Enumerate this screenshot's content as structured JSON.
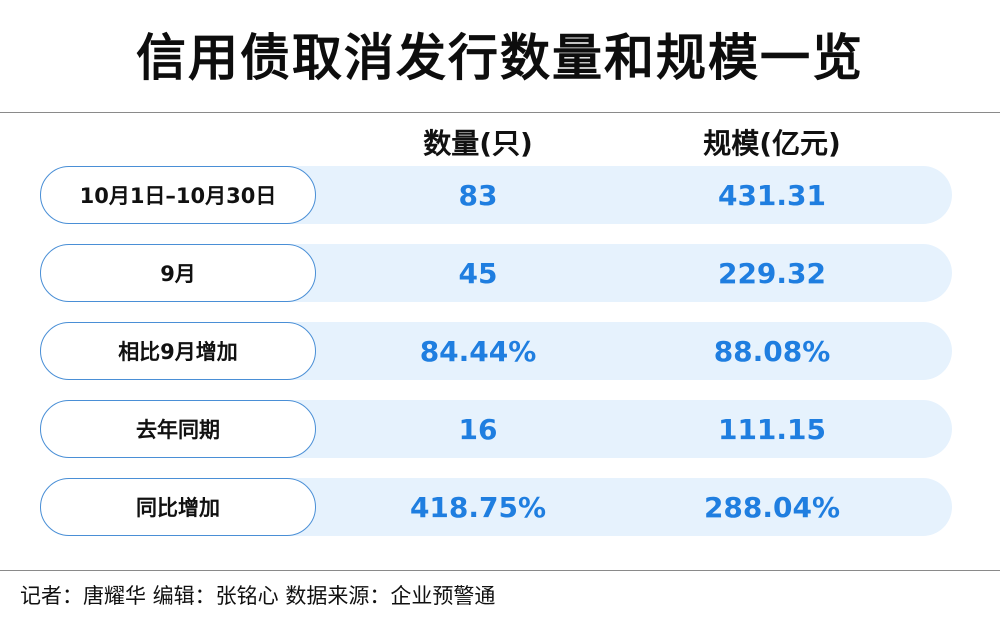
{
  "title": "信用债取消发行数量和规模一览",
  "columns": {
    "count": "数量(只)",
    "scale": "规模(亿元)"
  },
  "accent_color": "#1f7ee0",
  "rows": [
    {
      "label": "10月1日–10月30日",
      "count": "83",
      "scale": "431.31"
    },
    {
      "label": "9月",
      "count": "45",
      "scale": "229.32"
    },
    {
      "label": "相比9月增加",
      "count": "84.44%",
      "scale": "88.08%"
    },
    {
      "label": "去年同期",
      "count": "16",
      "scale": "111.15"
    },
    {
      "label": "同比增加",
      "count": "418.75%",
      "scale": "288.04%"
    }
  ],
  "footer": "记者：唐耀华  编辑：张铭心   数据来源：企业预警通"
}
